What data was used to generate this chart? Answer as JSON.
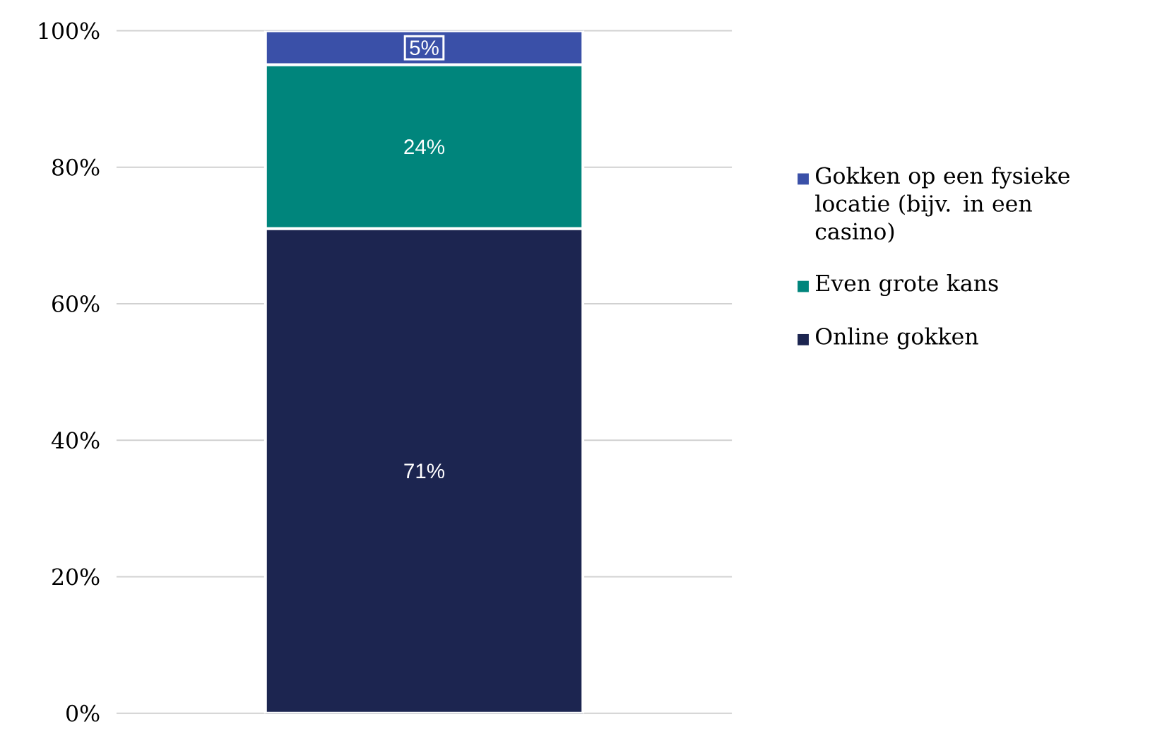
{
  "chart_data": {
    "type": "bar",
    "stacked": true,
    "categories": [
      null
    ],
    "series": [
      {
        "name": "Online gokken",
        "color": "#1c2550",
        "values": [
          71
        ],
        "value_labels": [
          "71%"
        ]
      },
      {
        "name": "Even grote kans",
        "color": "#00857c",
        "values": [
          24
        ],
        "value_labels": [
          "24%"
        ]
      },
      {
        "name": "Gokken op een fysieke locatie (bijv. in een casino)",
        "color": "#3a50a8",
        "values": [
          5
        ],
        "value_labels": [
          "5%"
        ]
      }
    ],
    "ylim": [
      0,
      100
    ],
    "yticks": [
      {
        "value": 0,
        "label": "0%"
      },
      {
        "value": 20,
        "label": "20%"
      },
      {
        "value": 40,
        "label": "40%"
      },
      {
        "value": 60,
        "label": "60%"
      },
      {
        "value": 80,
        "label": "80%"
      },
      {
        "value": 100,
        "label": "100%"
      }
    ],
    "grid": "y",
    "legend": "right",
    "tick_labels": "y"
  }
}
